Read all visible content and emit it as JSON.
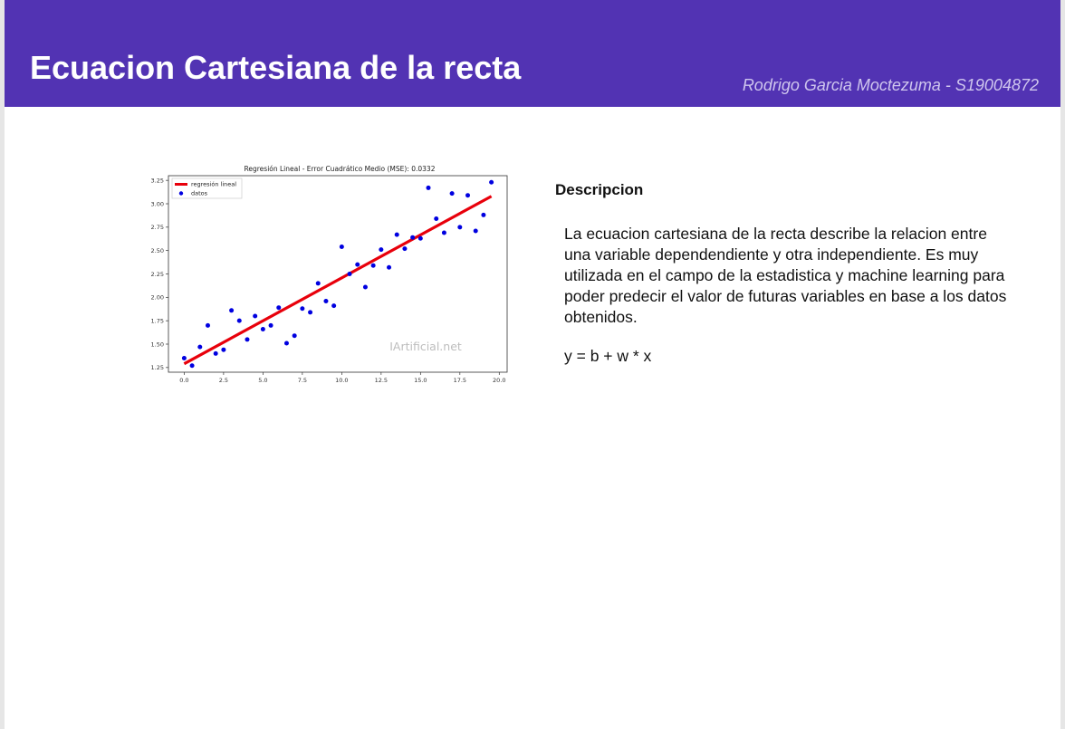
{
  "header": {
    "title": "Ecuacion Cartesiana de la recta",
    "author": "Rodrigo Garcia Moctezuma - S19004872"
  },
  "description": {
    "heading": "Descripcion",
    "body": "La ecuacion cartesiana de la recta describe la relacion entre una variable dependendiente y otra independiente. Es muy utilizada en el campo de la estadistica y machine learning para poder predecir el valor de futuras variables en base a los datos obtenidos.",
    "formula": "y = b + w * x"
  },
  "colors": {
    "header_bg": "#5233b3",
    "line": "#e8000b",
    "points": "#0000e0"
  },
  "chart_data": {
    "type": "scatter",
    "title": "Regresión Lineal - Error Cuadrático Medio (MSE): 0.0332",
    "watermark": "IArtificial.net",
    "xlim": [
      -1,
      20.5
    ],
    "ylim": [
      1.2,
      3.3
    ],
    "xticks": [
      "0.0",
      "2.5",
      "5.0",
      "7.5",
      "10.0",
      "12.5",
      "15.0",
      "17.5",
      "20.0"
    ],
    "yticks": [
      "1.25",
      "1.50",
      "1.75",
      "2.00",
      "2.25",
      "2.50",
      "2.75",
      "3.00",
      "3.25"
    ],
    "legend_position": "top-left",
    "series": [
      {
        "name": "regresión lineal",
        "kind": "line",
        "x": [
          0.0,
          19.5
        ],
        "y": [
          1.29,
          3.08
        ]
      },
      {
        "name": "datos",
        "kind": "points",
        "x": [
          0.0,
          0.5,
          1.0,
          1.5,
          2.0,
          2.5,
          3.0,
          3.5,
          4.0,
          4.5,
          5.0,
          5.5,
          6.0,
          6.5,
          7.0,
          7.5,
          8.0,
          8.5,
          9.0,
          9.5,
          10.0,
          10.5,
          11.0,
          11.5,
          12.0,
          12.5,
          13.0,
          13.5,
          14.0,
          14.5,
          15.0,
          15.5,
          16.0,
          16.5,
          17.0,
          17.5,
          18.0,
          18.5,
          19.0,
          19.5
        ],
        "y": [
          1.35,
          1.27,
          1.47,
          1.7,
          1.4,
          1.44,
          1.86,
          1.75,
          1.55,
          1.8,
          1.66,
          1.7,
          1.89,
          1.51,
          1.59,
          1.88,
          1.84,
          2.15,
          1.96,
          1.91,
          2.54,
          2.25,
          2.35,
          2.11,
          2.34,
          2.51,
          2.32,
          2.67,
          2.52,
          2.64,
          2.63,
          3.17,
          2.84,
          2.69,
          3.11,
          2.75,
          3.09,
          2.71,
          2.88,
          3.23
        ]
      }
    ]
  }
}
